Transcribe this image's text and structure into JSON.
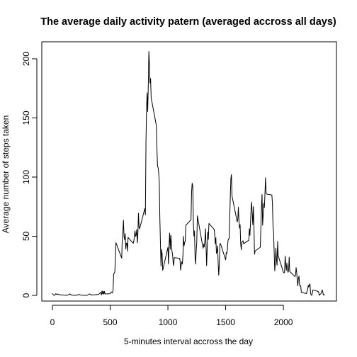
{
  "chart_data": {
    "type": "line",
    "title": "The average daily activity patern (averaged accross all days)",
    "xlabel": "5-minutes interval accross the day",
    "ylabel": "Average number of steps taken",
    "xlim": [
      0,
      2355
    ],
    "ylim": [
      0,
      206
    ],
    "xticks": [
      0,
      500,
      1000,
      1500,
      2000
    ],
    "yticks": [
      0,
      50,
      100,
      150,
      200
    ],
    "grid": false,
    "series": [
      {
        "points": [
          [
            0,
            1.7
          ],
          [
            10,
            0.3
          ],
          [
            20,
            0.1
          ],
          [
            30,
            1.5
          ],
          [
            40,
            0.6
          ],
          [
            50,
            1.2
          ],
          [
            60,
            0.5
          ],
          [
            100,
            0.2
          ],
          [
            120,
            0.1
          ],
          [
            140,
            0.5
          ],
          [
            150,
            1.3
          ],
          [
            165,
            0.2
          ],
          [
            200,
            0.0
          ],
          [
            215,
            0.3
          ],
          [
            230,
            0.8
          ],
          [
            245,
            0.2
          ],
          [
            300,
            0.0
          ],
          [
            320,
            1.2
          ],
          [
            340,
            0.3
          ],
          [
            400,
            0.8
          ],
          [
            420,
            2.5
          ],
          [
            425,
            0.4
          ],
          [
            430,
            3.8
          ],
          [
            435,
            1.3
          ],
          [
            440,
            3.5
          ],
          [
            445,
            1.0
          ],
          [
            450,
            3.4
          ],
          [
            455,
            1.2
          ],
          [
            500,
            1.4
          ],
          [
            510,
            3.0
          ],
          [
            520,
            2.2
          ],
          [
            525,
            3.8
          ],
          [
            530,
            18.0
          ],
          [
            540,
            19.5
          ],
          [
            545,
            30.0
          ],
          [
            550,
            44.6
          ],
          [
            600,
            31.5
          ],
          [
            605,
            49.0
          ],
          [
            610,
            53.0
          ],
          [
            615,
            63.5
          ],
          [
            620,
            50.0
          ],
          [
            625,
            47.1
          ],
          [
            630,
            52.2
          ],
          [
            635,
            39.3
          ],
          [
            640,
            44.0
          ],
          [
            645,
            44.2
          ],
          [
            650,
            37.4
          ],
          [
            655,
            49.0
          ],
          [
            700,
            44.0
          ],
          [
            705,
            46.0
          ],
          [
            710,
            50.5
          ],
          [
            715,
            54.5
          ],
          [
            720,
            49.9
          ],
          [
            725,
            51.0
          ],
          [
            730,
            55.7
          ],
          [
            735,
            44.3
          ],
          [
            740,
            52.3
          ],
          [
            745,
            69.5
          ],
          [
            750,
            57.8
          ],
          [
            755,
            56.2
          ],
          [
            800,
            73.4
          ],
          [
            805,
            68.2
          ],
          [
            810,
            129.4
          ],
          [
            815,
            157.5
          ],
          [
            820,
            171.2
          ],
          [
            825,
            155.4
          ],
          [
            830,
            177.3
          ],
          [
            835,
            206.2
          ],
          [
            840,
            195.9
          ],
          [
            845,
            179.6
          ],
          [
            850,
            183.4
          ],
          [
            855,
            167.0
          ],
          [
            900,
            143.5
          ],
          [
            905,
            124.0
          ],
          [
            910,
            109.1
          ],
          [
            915,
            108.1
          ],
          [
            920,
            103.7
          ],
          [
            925,
            95.9
          ],
          [
            930,
            66.2
          ],
          [
            935,
            45.2
          ],
          [
            940,
            24.8
          ],
          [
            945,
            38.8
          ],
          [
            950,
            35.0
          ],
          [
            955,
            21.1
          ],
          [
            1000,
            40.6
          ],
          [
            1005,
            26.5
          ],
          [
            1010,
            42.4
          ],
          [
            1015,
            52.7
          ],
          [
            1020,
            38.9
          ],
          [
            1025,
            50.8
          ],
          [
            1030,
            44.3
          ],
          [
            1035,
            37.4
          ],
          [
            1040,
            34.7
          ],
          [
            1045,
            28.3
          ],
          [
            1050,
            25.1
          ],
          [
            1055,
            31.9
          ],
          [
            1100,
            31.4
          ],
          [
            1105,
            29.7
          ],
          [
            1110,
            21.3
          ],
          [
            1115,
            25.5
          ],
          [
            1120,
            28.4
          ],
          [
            1125,
            26.5
          ],
          [
            1130,
            33.4
          ],
          [
            1135,
            49.9
          ],
          [
            1140,
            42.0
          ],
          [
            1145,
            44.6
          ],
          [
            1150,
            46.0
          ],
          [
            1155,
            59.3
          ],
          [
            1200,
            63.9
          ],
          [
            1205,
            87.7
          ],
          [
            1210,
            94.8
          ],
          [
            1215,
            92.8
          ],
          [
            1220,
            63.4
          ],
          [
            1225,
            50.2
          ],
          [
            1230,
            54.5
          ],
          [
            1235,
            32.4
          ],
          [
            1240,
            26.5
          ],
          [
            1245,
            37.7
          ],
          [
            1250,
            45.1
          ],
          [
            1255,
            67.3
          ],
          [
            1300,
            42.3
          ],
          [
            1305,
            39.9
          ],
          [
            1310,
            43.3
          ],
          [
            1315,
            40.9
          ],
          [
            1320,
            46.2
          ],
          [
            1325,
            56.4
          ],
          [
            1330,
            42.8
          ],
          [
            1335,
            25.1
          ],
          [
            1340,
            40.0
          ],
          [
            1345,
            53.5
          ],
          [
            1350,
            47.3
          ],
          [
            1355,
            60.8
          ],
          [
            1400,
            55.8
          ],
          [
            1405,
            51.9
          ],
          [
            1410,
            43.6
          ],
          [
            1415,
            48.7
          ],
          [
            1420,
            35.5
          ],
          [
            1425,
            37.5
          ],
          [
            1430,
            41.8
          ],
          [
            1435,
            27.5
          ],
          [
            1440,
            17.1
          ],
          [
            1445,
            26.1
          ],
          [
            1450,
            43.6
          ],
          [
            1455,
            43.8
          ],
          [
            1500,
            30.0
          ],
          [
            1505,
            36.1
          ],
          [
            1510,
            35.5
          ],
          [
            1515,
            38.8
          ],
          [
            1520,
            46.0
          ],
          [
            1525,
            47.8
          ],
          [
            1530,
            48.1
          ],
          [
            1535,
            65.3
          ],
          [
            1540,
            82.9
          ],
          [
            1545,
            98.7
          ],
          [
            1550,
            102.1
          ],
          [
            1555,
            84.0
          ],
          [
            1600,
            62.1
          ],
          [
            1605,
            64.1
          ],
          [
            1610,
            74.5
          ],
          [
            1615,
            63.2
          ],
          [
            1620,
            56.9
          ],
          [
            1625,
            59.8
          ],
          [
            1630,
            43.9
          ],
          [
            1635,
            38.6
          ],
          [
            1640,
            44.7
          ],
          [
            1645,
            45.5
          ],
          [
            1650,
            46.2
          ],
          [
            1655,
            43.7
          ],
          [
            1700,
            46.6
          ],
          [
            1705,
            56.3
          ],
          [
            1710,
            50.7
          ],
          [
            1715,
            61.2
          ],
          [
            1720,
            72.7
          ],
          [
            1725,
            78.9
          ],
          [
            1730,
            68.9
          ],
          [
            1735,
            59.7
          ],
          [
            1740,
            75.1
          ],
          [
            1745,
            56.5
          ],
          [
            1750,
            34.8
          ],
          [
            1755,
            37.5
          ],
          [
            1800,
            40.7
          ],
          [
            1805,
            58.0
          ],
          [
            1810,
            74.7
          ],
          [
            1815,
            85.3
          ],
          [
            1820,
            59.3
          ],
          [
            1825,
            67.8
          ],
          [
            1830,
            77.7
          ],
          [
            1835,
            74.2
          ],
          [
            1840,
            85.3
          ],
          [
            1845,
            99.5
          ],
          [
            1850,
            86.6
          ],
          [
            1855,
            85.6
          ],
          [
            1900,
            84.9
          ],
          [
            1905,
            77.8
          ],
          [
            1910,
            58.0
          ],
          [
            1915,
            53.4
          ],
          [
            1920,
            36.3
          ],
          [
            1925,
            20.7
          ],
          [
            1930,
            27.4
          ],
          [
            1935,
            40.0
          ],
          [
            1940,
            30.2
          ],
          [
            1945,
            25.5
          ],
          [
            1950,
            45.7
          ],
          [
            1955,
            33.5
          ],
          [
            2000,
            19.6
          ],
          [
            2005,
            19.0
          ],
          [
            2010,
            19.3
          ],
          [
            2015,
            33.3
          ],
          [
            2020,
            26.8
          ],
          [
            2025,
            21.2
          ],
          [
            2030,
            27.3
          ],
          [
            2035,
            21.3
          ],
          [
            2040,
            19.5
          ],
          [
            2045,
            21.3
          ],
          [
            2050,
            32.3
          ],
          [
            2055,
            20.2
          ],
          [
            2100,
            15.9
          ],
          [
            2105,
            17.2
          ],
          [
            2110,
            23.5
          ],
          [
            2115,
            19.2
          ],
          [
            2120,
            12.5
          ],
          [
            2125,
            8.0
          ],
          [
            2130,
            14.7
          ],
          [
            2135,
            16.3
          ],
          [
            2140,
            8.7
          ],
          [
            2145,
            7.8
          ],
          [
            2150,
            8.1
          ],
          [
            2155,
            2.6
          ],
          [
            2200,
            1.5
          ],
          [
            2205,
            3.7
          ],
          [
            2210,
            4.8
          ],
          [
            2215,
            8.5
          ],
          [
            2220,
            7.1
          ],
          [
            2225,
            8.7
          ],
          [
            2230,
            9.8
          ],
          [
            2235,
            2.2
          ],
          [
            2240,
            0.3
          ],
          [
            2245,
            0.1
          ],
          [
            2250,
            1.6
          ],
          [
            2255,
            4.6
          ],
          [
            2300,
            3.3
          ],
          [
            2305,
            2.8
          ],
          [
            2310,
            0.0
          ],
          [
            2315,
            0.8
          ],
          [
            2320,
            1.0
          ],
          [
            2325,
            1.6
          ],
          [
            2330,
            2.6
          ],
          [
            2335,
            4.7
          ],
          [
            2340,
            3.3
          ],
          [
            2345,
            0.6
          ],
          [
            2350,
            0.2
          ],
          [
            2355,
            1.1
          ]
        ]
      }
    ]
  }
}
